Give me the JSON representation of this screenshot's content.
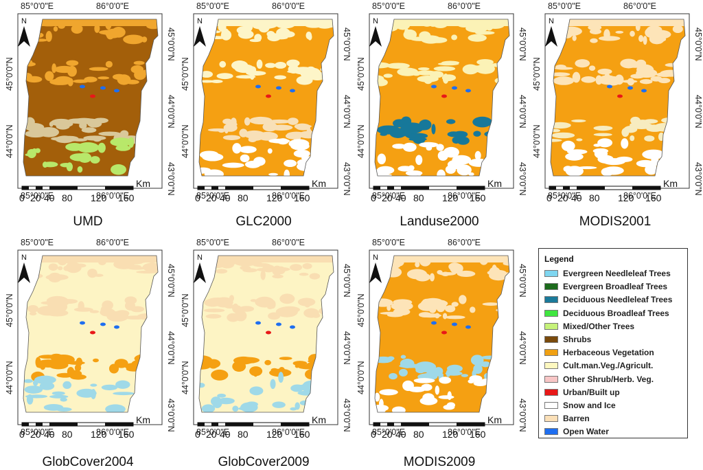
{
  "coords": {
    "lon_left": "85°0'0\"E",
    "lon_right": "86°0'0\"E",
    "lat_top": "45°0'0\"N",
    "lat_mid": "44°0'0\"N",
    "lat_bottom": "43°0'0\"N"
  },
  "north": "N",
  "scalebar": {
    "unit": "Km",
    "labels": [
      "0",
      "20",
      "40",
      "80",
      "120",
      "160"
    ]
  },
  "panels": [
    {
      "title": "UMD",
      "palette": [
        "#a35f0a",
        "#f0a62e",
        "#d9c89a",
        "#b8e86a"
      ]
    },
    {
      "title": "GLC2000",
      "palette": [
        "#f5a012",
        "#fdf5c8",
        "#f8e0b8",
        "#ffffff"
      ]
    },
    {
      "title": "Landuse2000",
      "palette": [
        "#f5a012",
        "#fbf2b6",
        "#17789a",
        "#ffffff"
      ]
    },
    {
      "title": "MODIS2001",
      "palette": [
        "#f5a012",
        "#fde4b8",
        "#f7ecc0",
        "#ffffff"
      ]
    },
    {
      "title": "GlobCover2004",
      "palette": [
        "#fdf4c4",
        "#f9deb2",
        "#f5a012",
        "#9fd9e8"
      ]
    },
    {
      "title": "GlobCover2009",
      "palette": [
        "#fdf4c4",
        "#f9deb2",
        "#f5a012",
        "#9fd9e8"
      ]
    },
    {
      "title": "MODIS2009",
      "palette": [
        "#f5a012",
        "#fde4b8",
        "#9fd9e8",
        "#ffffff"
      ]
    }
  ],
  "legend": {
    "title": "Legend",
    "items": [
      {
        "label": "Evergreen Needleleaf Trees",
        "color": "#7fd6f0"
      },
      {
        "label": "Evergreen Broadleaf Trees",
        "color": "#1c6b1c"
      },
      {
        "label": "Deciduous Needleleaf Trees",
        "color": "#1a7a9a"
      },
      {
        "label": "Deciduous Broadleaf Trees",
        "color": "#3fe63f"
      },
      {
        "label": "Mixed/Other Trees",
        "color": "#c6f27a"
      },
      {
        "label": "Shrubs",
        "color": "#7a4a0c"
      },
      {
        "label": "Herbaceous Vegetation",
        "color": "#f0a012"
      },
      {
        "label": "Cult.man.Veg./Agricult.",
        "color": "#fdf8c0"
      },
      {
        "label": "Other Shrub/Herb. Veg.",
        "color": "#f8c6c6"
      },
      {
        "label": "Urban/Built up",
        "color": "#e81818"
      },
      {
        "label": "Snow and Ice",
        "color": "#ffffff"
      },
      {
        "label": "Barren",
        "color": "#fbe0b8"
      },
      {
        "label": "Open Water",
        "color": "#1e6ef0"
      }
    ]
  }
}
